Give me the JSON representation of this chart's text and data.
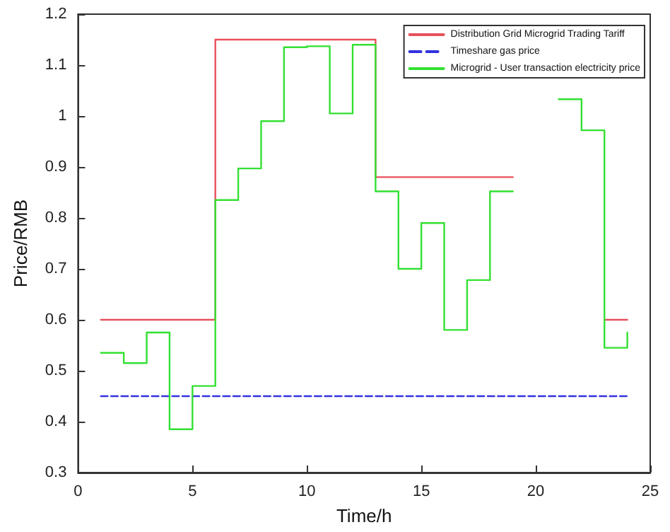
{
  "chart_data": {
    "type": "step",
    "xlabel": "Time/h",
    "ylabel": "Price/RMB",
    "xlim": [
      0,
      25
    ],
    "xticks": [
      0,
      5,
      10,
      15,
      20,
      25
    ],
    "ylim": [
      0.3,
      1.2
    ],
    "yticks": [
      0.3,
      0.4,
      0.5,
      0.6,
      0.7,
      0.8,
      0.9,
      1,
      1.1,
      1.2
    ],
    "grid": false,
    "legend": "top right",
    "marker": "none",
    "series": [
      {
        "name": "Distribution Grid Microgrid Trading Tariff",
        "color": "#e8505b",
        "line_style": "solid",
        "x": [
          1,
          2,
          3,
          4,
          5,
          6,
          7,
          8,
          9,
          10,
          11,
          12,
          13,
          14,
          15,
          16,
          17,
          18,
          19,
          20,
          21,
          22,
          23,
          24
        ],
        "values": [
          0.6,
          0.6,
          0.6,
          0.6,
          0.6,
          1.15,
          1.15,
          1.15,
          1.15,
          1.15,
          1.15,
          1.15,
          0.88,
          0.88,
          0.88,
          0.88,
          0.88,
          0.88,
          null,
          null,
          null,
          null,
          0.6,
          0.6
        ]
      },
      {
        "name": "Timeshare gas price",
        "type": "line",
        "color": "#3333e0",
        "line_style": "dashed",
        "x": [
          1,
          24
        ],
        "values": [
          0.45,
          0.45
        ]
      },
      {
        "name": "Microgrid - User transaction electricity price",
        "color": "#33e033",
        "line_style": "solid",
        "x": [
          1,
          2,
          3,
          4,
          5,
          6,
          7,
          8,
          9,
          10,
          11,
          12,
          13,
          14,
          15,
          16,
          17,
          18,
          19,
          20,
          21,
          22,
          23,
          24
        ],
        "values": [
          0.535,
          0.515,
          0.575,
          0.385,
          0.47,
          0.835,
          0.897,
          0.99,
          1.135,
          1.137,
          1.005,
          1.14,
          0.852,
          0.7,
          0.79,
          0.58,
          0.678,
          0.852,
          null,
          null,
          1.033,
          0.972,
          0.545,
          0.575
        ]
      }
    ]
  }
}
